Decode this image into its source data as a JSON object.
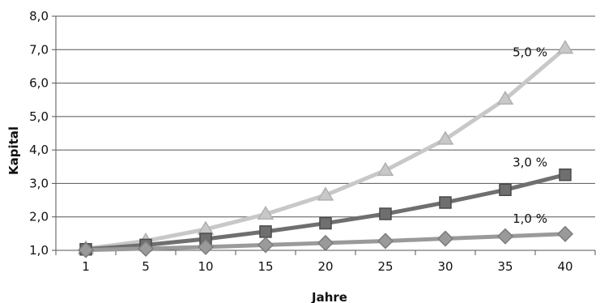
{
  "chart_data": {
    "type": "line",
    "title": "",
    "xlabel": "Jahre",
    "ylabel": "Kapital",
    "categories": [
      "1",
      "5",
      "10",
      "15",
      "20",
      "25",
      "30",
      "35",
      "40"
    ],
    "ylim": [
      1.0,
      8.0
    ],
    "yticks": [
      "1,0",
      "2,0",
      "3,0",
      "4,0",
      "5,0",
      "6,0",
      "7,0",
      "8,0"
    ],
    "grid": "horizontal",
    "legend": "none",
    "series": [
      {
        "name": "5,0 %",
        "marker": "triangle",
        "color": "#c8c8c8",
        "values": [
          1.05,
          1.28,
          1.63,
          2.08,
          2.65,
          3.39,
          4.32,
          5.52,
          7.04
        ]
      },
      {
        "name": "3,0 %",
        "marker": "square",
        "color": "#6f6f6f",
        "values": [
          1.03,
          1.16,
          1.34,
          1.56,
          1.81,
          2.09,
          2.43,
          2.81,
          3.26
        ]
      },
      {
        "name": "1,0 %",
        "marker": "diamond",
        "color": "#9a9a9a",
        "values": [
          1.01,
          1.05,
          1.1,
          1.16,
          1.22,
          1.28,
          1.35,
          1.42,
          1.49
        ]
      }
    ]
  }
}
